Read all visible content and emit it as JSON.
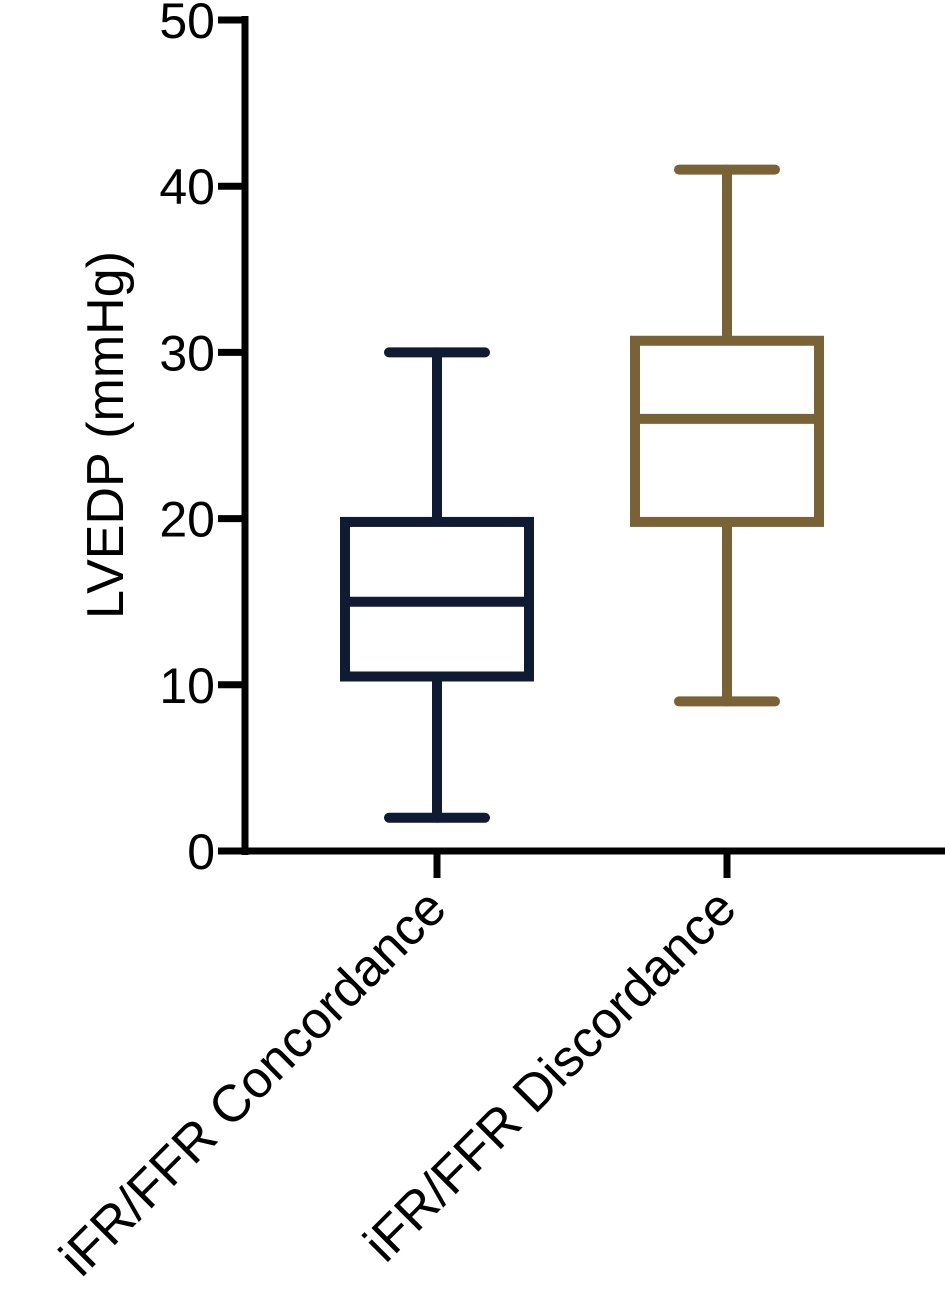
{
  "chart_data": {
    "type": "box",
    "ylabel": "LVEDP (mmHg)",
    "xlabel": "",
    "ylim": [
      0,
      50
    ],
    "yticks": [
      0,
      10,
      20,
      30,
      40,
      50
    ],
    "ytick_labels": [
      "0",
      "10",
      "20",
      "30",
      "40",
      "50"
    ],
    "categories": [
      "iFR/FFR Concordance",
      "iFR/FFR Discordance"
    ],
    "boxes": [
      {
        "category": "iFR/FFR Concordance",
        "min": 2,
        "q1": 10.5,
        "median": 15,
        "q3": 19.8,
        "max": 30,
        "color": "#0f1a33"
      },
      {
        "category": "iFR/FFR Discordance",
        "min": 9,
        "q1": 19.8,
        "median": 26,
        "q3": 30.7,
        "max": 41,
        "color": "#7a6237"
      }
    ],
    "grid": false,
    "legend": "none"
  }
}
